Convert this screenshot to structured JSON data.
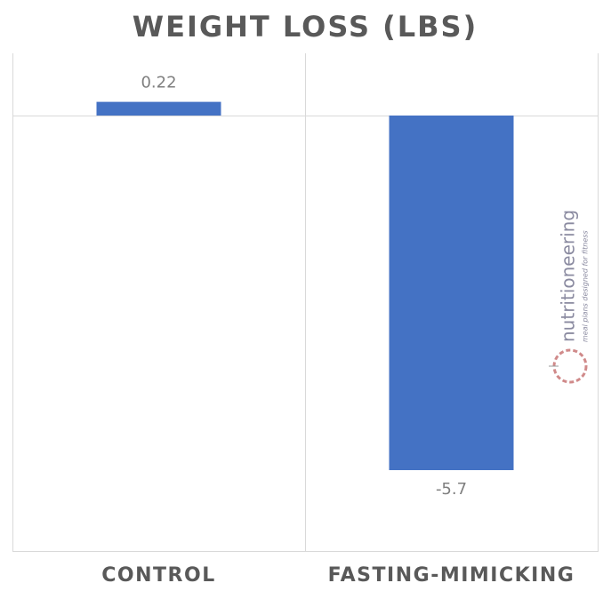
{
  "chart_data": {
    "type": "bar",
    "title": "WEIGHT LOSS (LBS)",
    "categories": [
      "CONTROL",
      "FASTING-MIMICKING"
    ],
    "values": [
      0.22,
      -5.7
    ],
    "color": "#4472c4",
    "ylim": [
      -7,
      1
    ],
    "data_labels": true,
    "category_gridlines": true
  },
  "watermark": {
    "brand": "nutritioneering",
    "tagline": "meal plans designed for fitness"
  }
}
